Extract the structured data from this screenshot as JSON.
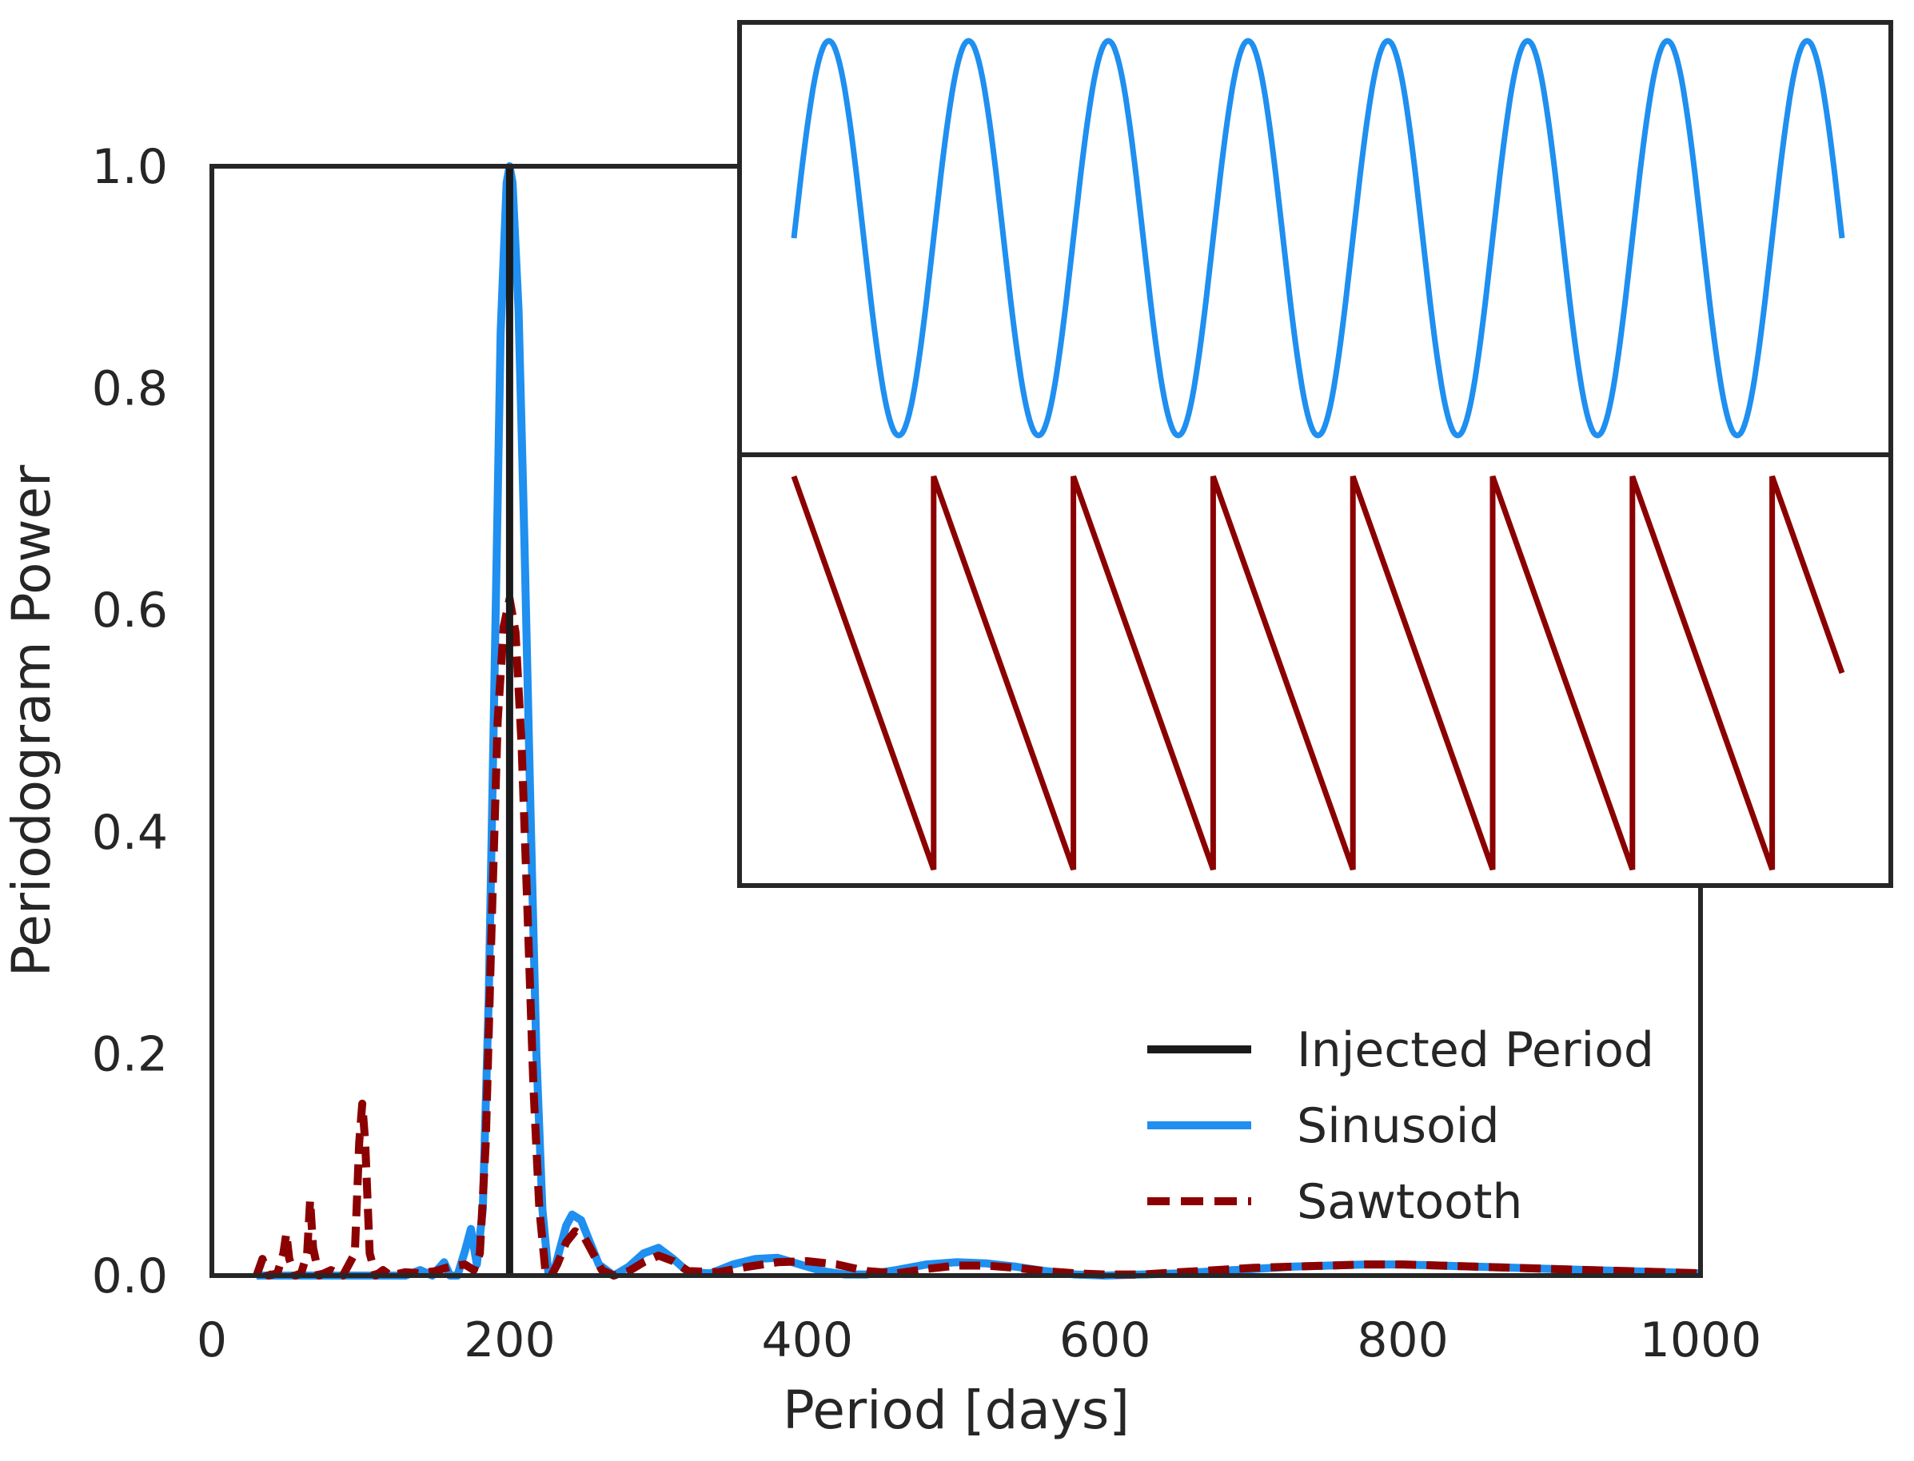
{
  "colors": {
    "injected": "#1a1a1a",
    "sinusoid": "#1f8ff0",
    "sawtooth": "#8b0000",
    "frame": "#262626",
    "background": "#ffffff"
  },
  "chart_data": [
    {
      "type": "line",
      "title": "",
      "xlabel": "Period [days]",
      "ylabel": "Periodogram Power",
      "xlim": [
        0,
        1000
      ],
      "ylim": [
        0,
        1.0
      ],
      "xticks": [
        0,
        200,
        400,
        600,
        800,
        1000
      ],
      "yticks": [
        0.0,
        0.2,
        0.4,
        0.6,
        0.8,
        1.0
      ],
      "xtick_labels": [
        "0",
        "200",
        "400",
        "600",
        "800",
        "1000"
      ],
      "ytick_labels": [
        "0.0",
        "0.2",
        "0.4",
        "0.6",
        "0.8",
        "1.0"
      ],
      "grid": false,
      "legend_position": "bottom-right",
      "injected_period": 200,
      "series": [
        {
          "name": "Injected Period",
          "style": "solid",
          "color": "#1a1a1a",
          "x": [
            200,
            200
          ],
          "y": [
            0,
            1.0
          ]
        },
        {
          "name": "Sinusoid",
          "style": "solid",
          "color": "#1f8ff0",
          "x": [
            30,
            130,
            140,
            148,
            156,
            160,
            165,
            170,
            174,
            178,
            182,
            186,
            190,
            194,
            198,
            200,
            202,
            206,
            210,
            214,
            218,
            222,
            226,
            230,
            234,
            238,
            242,
            248,
            254,
            260,
            270,
            280,
            290,
            300,
            310,
            320,
            335,
            350,
            365,
            380,
            395,
            410,
            425,
            440,
            460,
            480,
            500,
            520,
            540,
            560,
            580,
            600,
            625,
            650,
            675,
            700,
            725,
            750,
            775,
            800,
            825,
            850,
            875,
            900,
            925,
            950,
            975,
            1000
          ],
          "y": [
            0,
            0,
            0.005,
            0.0,
            0.012,
            0.0,
            0.0,
            0.022,
            0.042,
            0.01,
            0.06,
            0.25,
            0.55,
            0.85,
            0.985,
            1.0,
            0.985,
            0.87,
            0.66,
            0.42,
            0.2,
            0.06,
            0.003,
            0.005,
            0.025,
            0.045,
            0.055,
            0.05,
            0.03,
            0.01,
            0.0,
            0.008,
            0.02,
            0.025,
            0.015,
            0.003,
            0.002,
            0.01,
            0.015,
            0.016,
            0.01,
            0.004,
            0.001,
            0.001,
            0.005,
            0.01,
            0.012,
            0.011,
            0.008,
            0.004,
            0.001,
            0.0,
            0.001,
            0.002,
            0.004,
            0.006,
            0.008,
            0.009,
            0.01,
            0.01,
            0.009,
            0.008,
            0.007,
            0.006,
            0.005,
            0.004,
            0.003,
            0.002
          ]
        },
        {
          "name": "Sawtooth",
          "style": "dashed",
          "color": "#8b0000",
          "x": [
            30,
            34,
            38,
            44,
            48,
            50,
            52,
            56,
            60,
            64,
            66,
            68,
            72,
            80,
            88,
            96,
            99,
            101,
            103,
            106,
            110,
            115,
            120,
            130,
            140,
            150,
            160,
            170,
            176,
            180,
            184,
            188,
            192,
            196,
            200,
            204,
            208,
            212,
            216,
            220,
            224,
            228,
            232,
            238,
            244,
            250,
            256,
            262,
            270,
            280,
            290,
            300,
            310,
            320,
            340,
            360,
            380,
            400,
            420,
            440,
            460,
            480,
            500,
            520,
            540,
            560,
            580,
            600,
            625,
            650,
            675,
            700,
            725,
            750,
            775,
            800,
            825,
            850,
            875,
            900,
            925,
            950,
            975,
            1000
          ],
          "y": [
            0,
            0.015,
            0,
            0.002,
            0.02,
            0.038,
            0.015,
            0,
            0.002,
            0.02,
            0.068,
            0.025,
            0,
            0.005,
            0,
            0.02,
            0.12,
            0.155,
            0.12,
            0.02,
            0,
            0.005,
            0,
            0.003,
            0.002,
            0.004,
            0.008,
            0.01,
            0.005,
            0.02,
            0.12,
            0.32,
            0.5,
            0.585,
            0.61,
            0.58,
            0.48,
            0.33,
            0.17,
            0.06,
            0.005,
            0,
            0.01,
            0.03,
            0.04,
            0.035,
            0.02,
            0.005,
            0,
            0.004,
            0.012,
            0.018,
            0.013,
            0.004,
            0.003,
            0.008,
            0.012,
            0.013,
            0.01,
            0.004,
            0.002,
            0.006,
            0.009,
            0.009,
            0.007,
            0.004,
            0.002,
            0.001,
            0.001,
            0.003,
            0.005,
            0.007,
            0.008,
            0.009,
            0.01,
            0.01,
            0.009,
            0.008,
            0.007,
            0.006,
            0.005,
            0.004,
            0.003,
            0.002
          ]
        }
      ]
    },
    {
      "type": "line",
      "title": "",
      "xlabel": "",
      "ylabel": "",
      "inset": "top-right",
      "axes": false,
      "panels": [
        {
          "name": "sinusoid",
          "shape": "sine",
          "color": "#1f8ff0",
          "cycles": 7.5,
          "start_phase": 0.0,
          "yrange": [
            -1,
            1
          ]
        },
        {
          "name": "sawtooth",
          "shape": "sawtooth",
          "color": "#8b0000",
          "cycles": 7.5,
          "yrange": [
            0,
            1
          ]
        }
      ]
    }
  ]
}
